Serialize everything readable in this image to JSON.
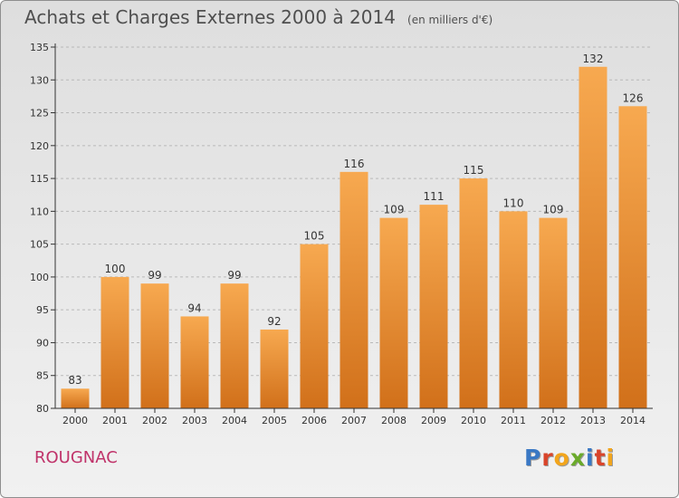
{
  "header": {
    "title": "Achats et Charges Externes 2000 à 2014",
    "unit": "(en milliers d'€)"
  },
  "footer": {
    "city": "ROUGNAC",
    "logo_text": "Proxiti",
    "logo_colors": [
      "#3a78c4",
      "#d9442a",
      "#f2a51c",
      "#6aaa2a",
      "#3a78c4",
      "#d9442a",
      "#f2a51c"
    ]
  },
  "colors": {
    "bar_light": "#f7a950",
    "bar_dark": "#d1701a",
    "axis": "#333333",
    "grid": "#b9b9b9"
  },
  "chart_data": {
    "type": "bar",
    "title": "Achats et Charges Externes 2000 à 2014",
    "subtitle": "(en milliers d'€)",
    "categories": [
      "2000",
      "2001",
      "2002",
      "2003",
      "2004",
      "2005",
      "2006",
      "2007",
      "2008",
      "2009",
      "2010",
      "2011",
      "2012",
      "2013",
      "2014"
    ],
    "values": [
      83,
      100,
      99,
      94,
      99,
      92,
      105,
      116,
      109,
      111,
      115,
      110,
      109,
      132,
      126
    ],
    "ylim": [
      80,
      135
    ],
    "yticks": [
      80,
      85,
      90,
      95,
      100,
      105,
      110,
      115,
      120,
      125,
      130,
      135
    ],
    "grid": true,
    "data_labels": true
  }
}
